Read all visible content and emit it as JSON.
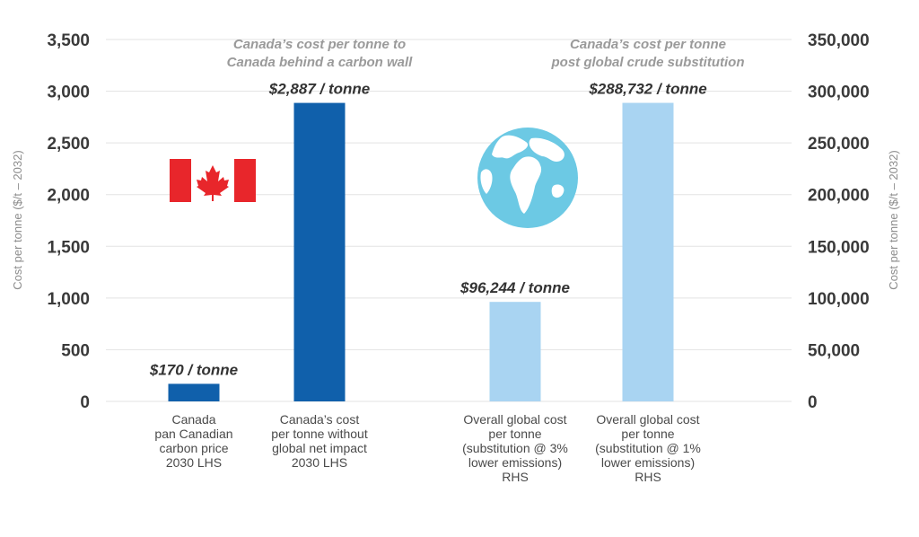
{
  "chart_data": {
    "type": "bar",
    "categories": [
      [
        "Canada",
        "pan Canadian",
        "carbon price",
        "2030 LHS"
      ],
      [
        "Canada’s cost",
        "per tonne without",
        "global net impact",
        "2030 LHS"
      ],
      [
        "Overall global cost",
        "per tonne",
        "(substitution @ 3%",
        "lower emissions)",
        "RHS"
      ],
      [
        "Overall global cost",
        "per tonne",
        "(substitution @ 1%",
        "lower emissions)",
        "RHS"
      ]
    ],
    "values": [
      170,
      2887,
      96244,
      288732
    ],
    "axis_side": [
      "left",
      "left",
      "right",
      "right"
    ],
    "value_labels": [
      "$170 / tonne",
      "$2,887 / tonne",
      "$96,244 / tonne",
      "$288,732 / tonne"
    ],
    "left_axis": {
      "label": "Cost per tonne ($/t – 2032)",
      "ylim": [
        0,
        3500
      ],
      "ticks": [
        "0",
        "500",
        "1,000",
        "1,500",
        "2,000",
        "2,500",
        "3,000",
        "3,500"
      ]
    },
    "right_axis": {
      "label": "Cost per tonne ($/t – 2032)",
      "ylim": [
        0,
        350000
      ],
      "ticks": [
        "0",
        "50,000",
        "100,000",
        "150,000",
        "200,000",
        "250,000",
        "300,000",
        "350,000"
      ]
    },
    "annotations": [
      [
        "Canada’s cost per tonne to",
        "Canada behind a carbon wall"
      ],
      [
        "Canada’s cost per tonne",
        "post global crude substitution"
      ]
    ],
    "grid": true
  },
  "colors": {
    "canada_bar": "#1060ab",
    "global_bar": "#a9d4f2",
    "flag_red": "#e8262b",
    "globe_ocean": "#6cc9e4"
  },
  "icons": [
    "canada-flag-icon",
    "globe-icon"
  ]
}
